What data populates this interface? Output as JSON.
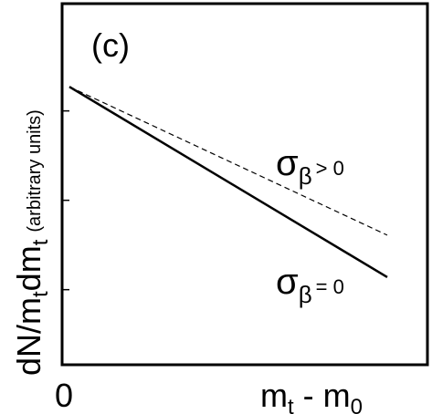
{
  "chart_data": {
    "type": "line",
    "annotation": "(c)",
    "ylabel_parts": [
      "dN/m",
      "t",
      "dm",
      "t"
    ],
    "ylabel_note": "(arbitrary units)",
    "xlabel_parts": [
      "m",
      "t",
      " - m",
      "0"
    ],
    "x": [
      0.02,
      0.89
    ],
    "xlim": [
      0,
      1
    ],
    "xticks": [
      0
    ],
    "ylim": [
      0.16,
      4.2
    ],
    "yticks": [
      1,
      2,
      3
    ],
    "series": [
      {
        "label": [
          "σ",
          "β",
          "> 0"
        ],
        "color": "#000000",
        "dashed": true,
        "values": [
          3.27,
          1.61
        ]
      },
      {
        "label": [
          "σ",
          "β",
          "= 0"
        ],
        "color": "#000000",
        "dashed": false,
        "values": [
          3.27,
          1.14
        ]
      }
    ]
  }
}
